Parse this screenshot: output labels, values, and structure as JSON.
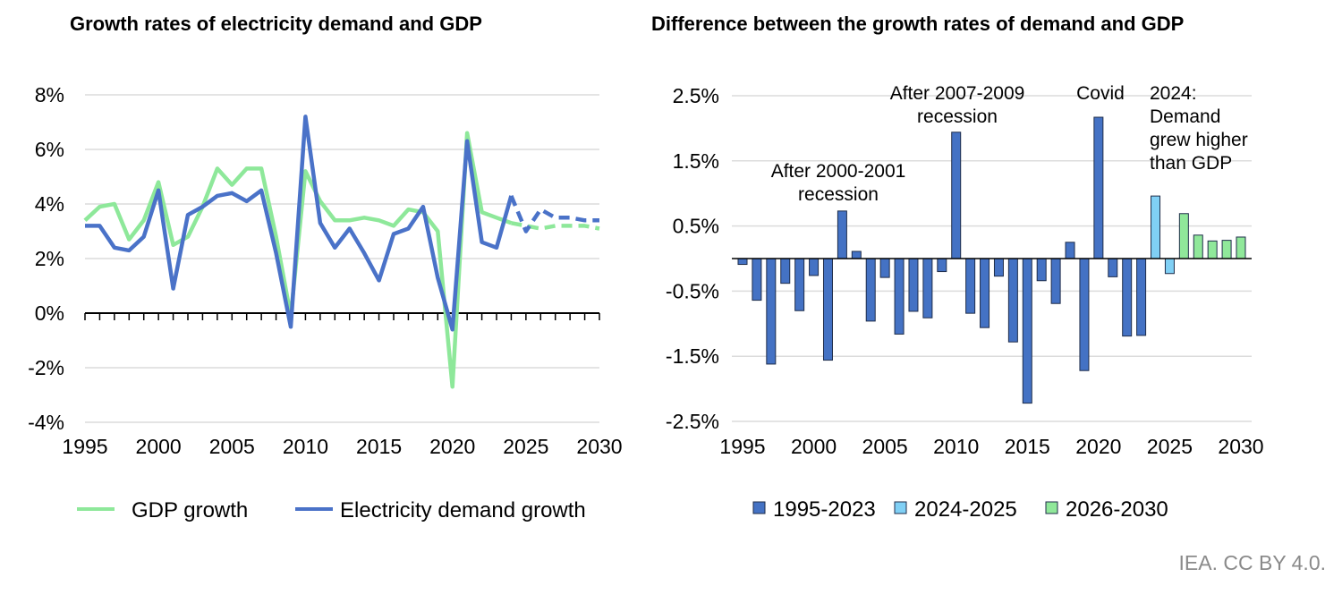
{
  "credit": "IEA. CC BY 4.0.",
  "chart_data": [
    {
      "type": "line",
      "title": "Growth rates of electricity demand and GDP",
      "xlabel": "",
      "ylabel": "",
      "x": [
        1995,
        1996,
        1997,
        1998,
        1999,
        2000,
        2001,
        2002,
        2003,
        2004,
        2005,
        2006,
        2007,
        2008,
        2009,
        2010,
        2011,
        2012,
        2013,
        2014,
        2015,
        2016,
        2017,
        2018,
        2019,
        2020,
        2021,
        2022,
        2023,
        2024,
        2025,
        2026,
        2027,
        2028,
        2029,
        2030
      ],
      "xticks": [
        "1995",
        "2000",
        "2005",
        "2010",
        "2015",
        "2020",
        "2025",
        "2030"
      ],
      "yticks": [
        "8%",
        "6%",
        "4%",
        "2%",
        "0%",
        "-2%",
        "-4%"
      ],
      "ylim": [
        -4,
        8
      ],
      "grid": true,
      "projection_start": 2024,
      "legend": "bottom",
      "series": [
        {
          "name": "GDP growth",
          "color": "#8ee89a",
          "values": [
            3.4,
            3.9,
            4.0,
            2.7,
            3.4,
            4.8,
            2.5,
            2.8,
            3.9,
            5.3,
            4.7,
            5.3,
            5.3,
            2.8,
            -0.1,
            5.2,
            4.1,
            3.4,
            3.4,
            3.5,
            3.4,
            3.2,
            3.8,
            3.7,
            3.0,
            -2.7,
            6.6,
            3.7,
            3.5,
            3.3,
            3.2,
            3.1,
            3.2,
            3.2,
            3.2,
            3.1
          ]
        },
        {
          "name": "Electricity demand growth",
          "color": "#4a72c8",
          "values": [
            3.2,
            3.2,
            2.4,
            2.3,
            2.8,
            4.5,
            0.9,
            3.6,
            3.9,
            4.3,
            4.4,
            4.1,
            4.5,
            2.2,
            -0.5,
            7.2,
            3.3,
            2.4,
            3.1,
            2.2,
            1.2,
            2.9,
            3.1,
            3.9,
            1.3,
            -0.6,
            6.3,
            2.6,
            2.4,
            4.3,
            3.0,
            3.8,
            3.5,
            3.5,
            3.4,
            3.4
          ]
        }
      ]
    },
    {
      "type": "bar",
      "title": "Difference between the growth rates of demand and GDP",
      "xlabel": "",
      "ylabel": "",
      "x": [
        1995,
        1996,
        1997,
        1998,
        1999,
        2000,
        2001,
        2002,
        2003,
        2004,
        2005,
        2006,
        2007,
        2008,
        2009,
        2010,
        2011,
        2012,
        2013,
        2014,
        2015,
        2016,
        2017,
        2018,
        2019,
        2020,
        2021,
        2022,
        2023,
        2024,
        2025,
        2026,
        2027,
        2028,
        2029,
        2030
      ],
      "xticks": [
        "1995",
        "2000",
        "2005",
        "2010",
        "2015",
        "2020",
        "2025",
        "2030"
      ],
      "yticks": [
        "2.5%",
        "1.5%",
        "0.5%",
        "-0.5%",
        "-1.5%",
        "-2.5%"
      ],
      "ylim": [
        -2.5,
        2.5
      ],
      "grid": true,
      "legend": "bottom",
      "series": [
        {
          "name": "1995-2023",
          "color": "#4472c4",
          "from": 1995,
          "to": 2023
        },
        {
          "name": "2024-2025",
          "color": "#80d0f5",
          "from": 2024,
          "to": 2025
        },
        {
          "name": "2026-2030",
          "color": "#90e89a",
          "from": 2026,
          "to": 2030
        }
      ],
      "values": [
        -0.09,
        -0.64,
        -1.62,
        -0.38,
        -0.8,
        -0.26,
        -1.56,
        0.73,
        0.11,
        -0.96,
        -0.29,
        -1.16,
        -0.81,
        -0.91,
        -0.2,
        1.94,
        -0.84,
        -1.06,
        -0.27,
        -1.28,
        -2.22,
        -0.34,
        -0.69,
        0.25,
        -1.72,
        2.17,
        -0.28,
        -1.19,
        -1.18,
        0.96,
        -0.23,
        0.69,
        0.36,
        0.27,
        0.28,
        0.33
      ],
      "annotations": [
        {
          "year": 2002,
          "lines": [
            "After 2000-2001",
            "recession"
          ]
        },
        {
          "year": 2010,
          "lines": [
            "After 2007-2009",
            "recession"
          ]
        },
        {
          "year": 2020,
          "lines": [
            "Covid"
          ]
        },
        {
          "year": 2024,
          "lines": [
            "2024:",
            "Demand",
            "grew higher",
            "than GDP"
          ]
        }
      ]
    }
  ]
}
